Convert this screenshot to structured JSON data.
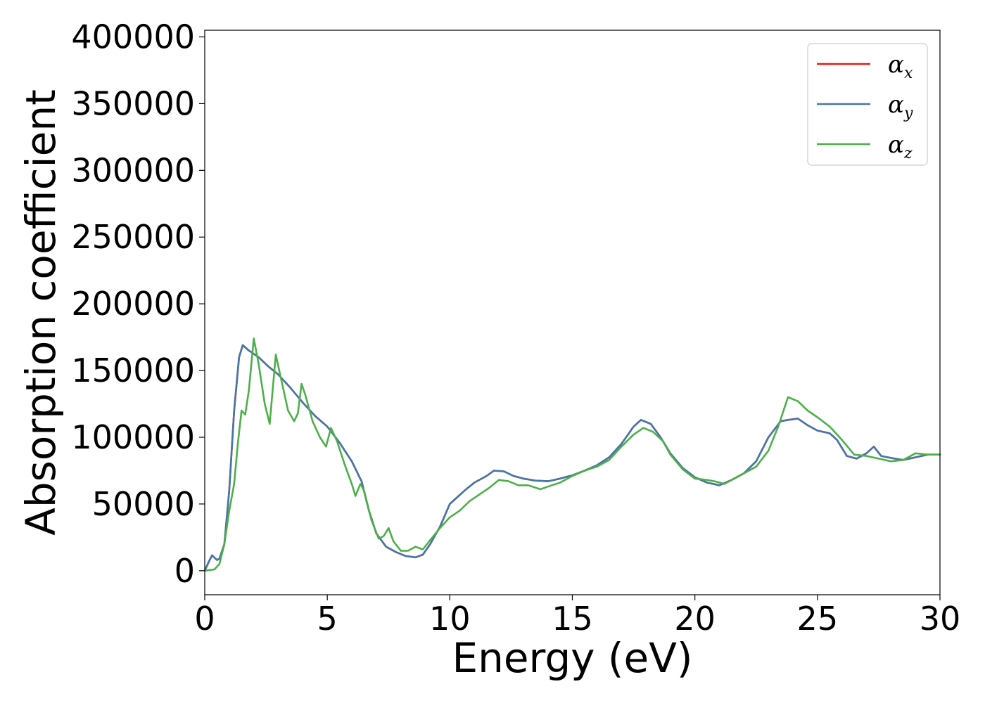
{
  "chart_data": {
    "type": "line",
    "title": "",
    "xlabel": "Energy (eV)",
    "ylabel": "Absorption coefficient",
    "xlim": [
      0,
      30
    ],
    "ylim": [
      -18000,
      405000
    ],
    "x_ticks": [
      "0",
      "5",
      "10",
      "15",
      "20",
      "25",
      "30"
    ],
    "y_ticks": [
      "0",
      "50000",
      "100000",
      "150000",
      "200000",
      "250000",
      "300000",
      "350000",
      "400000"
    ],
    "grid": false,
    "legend_position": "top-right",
    "series": [
      {
        "name": "α",
        "sub": "x",
        "color": "#e41a1c",
        "points": [
          [
            0,
            0
          ],
          [
            0.2,
            8000
          ],
          [
            0.3,
            11500
          ],
          [
            0.5,
            8000
          ],
          [
            0.6,
            9000
          ],
          [
            0.8,
            20000
          ],
          [
            1.0,
            60000
          ],
          [
            1.2,
            120000
          ],
          [
            1.4,
            160000
          ],
          [
            1.55,
            169000
          ],
          [
            1.8,
            165000
          ],
          [
            2.2,
            160000
          ],
          [
            2.6,
            153000
          ],
          [
            3.0,
            147000
          ],
          [
            3.5,
            137000
          ],
          [
            4.0,
            126000
          ],
          [
            4.5,
            116000
          ],
          [
            5.0,
            108000
          ],
          [
            5.5,
            96000
          ],
          [
            6.0,
            82000
          ],
          [
            6.4,
            67000
          ],
          [
            6.7,
            45000
          ],
          [
            7.0,
            28000
          ],
          [
            7.4,
            18000
          ],
          [
            7.8,
            14000
          ],
          [
            8.2,
            11000
          ],
          [
            8.6,
            10000
          ],
          [
            8.9,
            12000
          ],
          [
            9.2,
            20000
          ],
          [
            9.6,
            33000
          ],
          [
            10.0,
            50000
          ],
          [
            10.3,
            55000
          ],
          [
            10.6,
            60000
          ],
          [
            11.0,
            66000
          ],
          [
            11.5,
            71000
          ],
          [
            11.8,
            75000
          ],
          [
            12.2,
            74500
          ],
          [
            12.6,
            71000
          ],
          [
            13.0,
            69000
          ],
          [
            13.5,
            67500
          ],
          [
            14.0,
            67000
          ],
          [
            14.5,
            69000
          ],
          [
            15.0,
            71500
          ],
          [
            15.5,
            75000
          ],
          [
            16.0,
            79000
          ],
          [
            16.5,
            85000
          ],
          [
            17.0,
            95000
          ],
          [
            17.5,
            108000
          ],
          [
            17.8,
            113000
          ],
          [
            18.2,
            110000
          ],
          [
            18.6,
            100000
          ],
          [
            19.0,
            88000
          ],
          [
            19.5,
            77000
          ],
          [
            20.0,
            70000
          ],
          [
            20.5,
            66000
          ],
          [
            21.0,
            64000
          ],
          [
            21.5,
            68000
          ],
          [
            22.0,
            73000
          ],
          [
            22.5,
            82000
          ],
          [
            23.0,
            100000
          ],
          [
            23.5,
            112000
          ],
          [
            23.8,
            113000
          ],
          [
            24.2,
            114000
          ],
          [
            24.6,
            109000
          ],
          [
            25.0,
            105000
          ],
          [
            25.5,
            103000
          ],
          [
            25.8,
            98000
          ],
          [
            26.2,
            86000
          ],
          [
            26.6,
            84000
          ],
          [
            27.0,
            88000
          ],
          [
            27.3,
            93000
          ],
          [
            27.6,
            86000
          ],
          [
            28.0,
            84500
          ],
          [
            28.5,
            83000
          ],
          [
            29.0,
            85000
          ],
          [
            29.5,
            87000
          ],
          [
            30.0,
            87000
          ]
        ]
      },
      {
        "name": "α",
        "sub": "y",
        "color": "#4477aa",
        "points": [
          [
            0,
            0
          ],
          [
            0.2,
            8000
          ],
          [
            0.3,
            11500
          ],
          [
            0.5,
            8000
          ],
          [
            0.6,
            9000
          ],
          [
            0.8,
            20000
          ],
          [
            1.0,
            60000
          ],
          [
            1.2,
            120000
          ],
          [
            1.4,
            160000
          ],
          [
            1.55,
            169000
          ],
          [
            1.8,
            165000
          ],
          [
            2.2,
            160000
          ],
          [
            2.6,
            153000
          ],
          [
            3.0,
            147000
          ],
          [
            3.5,
            137000
          ],
          [
            4.0,
            126000
          ],
          [
            4.5,
            116000
          ],
          [
            5.0,
            108000
          ],
          [
            5.5,
            96000
          ],
          [
            6.0,
            82000
          ],
          [
            6.4,
            67000
          ],
          [
            6.7,
            45000
          ],
          [
            7.0,
            28000
          ],
          [
            7.4,
            18000
          ],
          [
            7.8,
            14000
          ],
          [
            8.2,
            11000
          ],
          [
            8.6,
            10000
          ],
          [
            8.9,
            12000
          ],
          [
            9.2,
            20000
          ],
          [
            9.6,
            33000
          ],
          [
            10.0,
            50000
          ],
          [
            10.3,
            55000
          ],
          [
            10.6,
            60000
          ],
          [
            11.0,
            66000
          ],
          [
            11.5,
            71000
          ],
          [
            11.8,
            75000
          ],
          [
            12.2,
            74500
          ],
          [
            12.6,
            71000
          ],
          [
            13.0,
            69000
          ],
          [
            13.5,
            67500
          ],
          [
            14.0,
            67000
          ],
          [
            14.5,
            69000
          ],
          [
            15.0,
            71500
          ],
          [
            15.5,
            75000
          ],
          [
            16.0,
            79000
          ],
          [
            16.5,
            85000
          ],
          [
            17.0,
            95000
          ],
          [
            17.5,
            108000
          ],
          [
            17.8,
            113000
          ],
          [
            18.2,
            110000
          ],
          [
            18.6,
            100000
          ],
          [
            19.0,
            88000
          ],
          [
            19.5,
            77000
          ],
          [
            20.0,
            70000
          ],
          [
            20.5,
            66000
          ],
          [
            21.0,
            64000
          ],
          [
            21.5,
            68000
          ],
          [
            22.0,
            73000
          ],
          [
            22.5,
            82000
          ],
          [
            23.0,
            100000
          ],
          [
            23.5,
            112000
          ],
          [
            23.8,
            113000
          ],
          [
            24.2,
            114000
          ],
          [
            24.6,
            109000
          ],
          [
            25.0,
            105000
          ],
          [
            25.5,
            103000
          ],
          [
            25.8,
            98000
          ],
          [
            26.2,
            86000
          ],
          [
            26.6,
            84000
          ],
          [
            27.0,
            88000
          ],
          [
            27.3,
            93000
          ],
          [
            27.6,
            86000
          ],
          [
            28.0,
            84500
          ],
          [
            28.5,
            83000
          ],
          [
            29.0,
            85000
          ],
          [
            29.5,
            87000
          ],
          [
            30.0,
            87000
          ]
        ]
      },
      {
        "name": "α",
        "sub": "z",
        "color": "#4daf4a",
        "points": [
          [
            0,
            0
          ],
          [
            0.4,
            1000
          ],
          [
            0.6,
            5000
          ],
          [
            0.8,
            20000
          ],
          [
            1.0,
            45000
          ],
          [
            1.2,
            65000
          ],
          [
            1.35,
            95000
          ],
          [
            1.5,
            120000
          ],
          [
            1.65,
            117000
          ],
          [
            1.8,
            135000
          ],
          [
            2.0,
            174000
          ],
          [
            2.2,
            155000
          ],
          [
            2.45,
            125000
          ],
          [
            2.65,
            110000
          ],
          [
            2.9,
            162000
          ],
          [
            3.1,
            145000
          ],
          [
            3.4,
            120000
          ],
          [
            3.65,
            112000
          ],
          [
            3.8,
            118000
          ],
          [
            3.95,
            140000
          ],
          [
            4.1,
            132000
          ],
          [
            4.4,
            112000
          ],
          [
            4.7,
            100000
          ],
          [
            4.95,
            93000
          ],
          [
            5.15,
            107000
          ],
          [
            5.4,
            97000
          ],
          [
            5.7,
            80000
          ],
          [
            6.0,
            65000
          ],
          [
            6.15,
            56000
          ],
          [
            6.35,
            65000
          ],
          [
            6.5,
            60000
          ],
          [
            6.8,
            38000
          ],
          [
            7.1,
            24000
          ],
          [
            7.3,
            26000
          ],
          [
            7.5,
            32000
          ],
          [
            7.7,
            22000
          ],
          [
            8.0,
            15000
          ],
          [
            8.3,
            15000
          ],
          [
            8.6,
            18000
          ],
          [
            8.9,
            16000
          ],
          [
            9.2,
            23000
          ],
          [
            9.6,
            32000
          ],
          [
            10.0,
            40000
          ],
          [
            10.4,
            45000
          ],
          [
            10.8,
            52000
          ],
          [
            11.2,
            57000
          ],
          [
            11.6,
            62000
          ],
          [
            12.0,
            68000
          ],
          [
            12.4,
            67000
          ],
          [
            12.8,
            64000
          ],
          [
            13.2,
            64000
          ],
          [
            13.7,
            61000
          ],
          [
            14.0,
            63000
          ],
          [
            14.5,
            66000
          ],
          [
            15.0,
            71000
          ],
          [
            15.5,
            75000
          ],
          [
            16.0,
            78000
          ],
          [
            16.5,
            83000
          ],
          [
            17.0,
            93000
          ],
          [
            17.5,
            102000
          ],
          [
            17.9,
            107000
          ],
          [
            18.3,
            104000
          ],
          [
            18.7,
            97000
          ],
          [
            19.0,
            87000
          ],
          [
            19.5,
            76000
          ],
          [
            20.0,
            69000
          ],
          [
            20.5,
            68000
          ],
          [
            20.8,
            67000
          ],
          [
            21.2,
            65000
          ],
          [
            21.6,
            69000
          ],
          [
            22.0,
            73000
          ],
          [
            22.5,
            78000
          ],
          [
            23.0,
            90000
          ],
          [
            23.4,
            108000
          ],
          [
            23.8,
            130000
          ],
          [
            24.2,
            127000
          ],
          [
            24.6,
            120000
          ],
          [
            25.0,
            115000
          ],
          [
            25.5,
            108000
          ],
          [
            26.0,
            98000
          ],
          [
            26.5,
            87000
          ],
          [
            27.0,
            86000
          ],
          [
            27.5,
            84000
          ],
          [
            28.0,
            82000
          ],
          [
            28.5,
            83000
          ],
          [
            29.0,
            88000
          ],
          [
            29.5,
            87000
          ],
          [
            30.0,
            87000
          ]
        ]
      }
    ]
  }
}
